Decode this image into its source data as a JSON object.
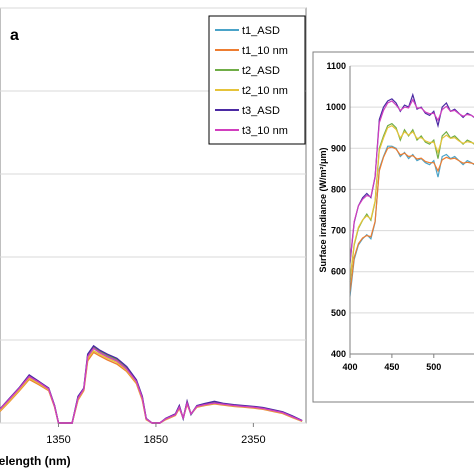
{
  "chart_data": [
    {
      "type": "line",
      "panel_label": "a",
      "xlabel": "velength (nm)",
      "ylabel": "",
      "xlim": [
        1050,
        2620
      ],
      "ylim": [
        0,
        1000
      ],
      "x_ticks": [
        1350,
        1850,
        2350
      ],
      "grid": "horizontal",
      "legend_position": "top-right",
      "series": [
        {
          "name": "t1_ASD",
          "color": "#4aa3c8",
          "x": [
            1050,
            1100,
            1150,
            1200,
            1250,
            1300,
            1330,
            1350,
            1380,
            1420,
            1450,
            1480,
            1500,
            1530,
            1560,
            1600,
            1650,
            1700,
            1750,
            1780,
            1800,
            1830,
            1870,
            1900,
            1950,
            1970,
            1990,
            2010,
            2030,
            2060,
            2100,
            2150,
            2200,
            2250,
            2300,
            2350,
            2400,
            2450,
            2500,
            2550,
            2600
          ],
          "y": [
            30,
            55,
            80,
            110,
            95,
            80,
            40,
            0,
            0,
            0,
            60,
            80,
            160,
            180,
            170,
            160,
            150,
            130,
            100,
            60,
            10,
            0,
            0,
            10,
            20,
            40,
            10,
            50,
            20,
            40,
            45,
            50,
            45,
            42,
            40,
            38,
            35,
            30,
            25,
            15,
            5
          ]
        },
        {
          "name": "t1_10 nm",
          "color": "#ed7d31",
          "x": [
            1050,
            1100,
            1150,
            1200,
            1250,
            1300,
            1330,
            1350,
            1380,
            1420,
            1450,
            1480,
            1500,
            1530,
            1560,
            1600,
            1650,
            1700,
            1750,
            1780,
            1800,
            1830,
            1870,
            1900,
            1950,
            1970,
            1990,
            2010,
            2030,
            2060,
            2100,
            2150,
            2200,
            2250,
            2300,
            2350,
            2400,
            2450,
            2500,
            2550,
            2600
          ],
          "y": [
            28,
            52,
            78,
            105,
            92,
            78,
            38,
            0,
            0,
            0,
            55,
            78,
            150,
            170,
            162,
            152,
            142,
            124,
            95,
            55,
            8,
            0,
            0,
            8,
            18,
            35,
            12,
            45,
            22,
            38,
            42,
            46,
            43,
            40,
            38,
            36,
            33,
            28,
            23,
            13,
            4
          ]
        },
        {
          "name": "t2_ASD",
          "color": "#70ad47",
          "x": [
            1050,
            1100,
            1150,
            1200,
            1250,
            1300,
            1330,
            1350,
            1380,
            1420,
            1450,
            1480,
            1500,
            1530,
            1560,
            1600,
            1650,
            1700,
            1750,
            1780,
            1800,
            1830,
            1870,
            1900,
            1950,
            1970,
            1990,
            2010,
            2030,
            2060,
            2100,
            2150,
            2200,
            2250,
            2300,
            2350,
            2400,
            2450,
            2500,
            2550,
            2600
          ],
          "y": [
            32,
            57,
            83,
            113,
            98,
            82,
            41,
            0,
            0,
            0,
            62,
            82,
            163,
            183,
            173,
            163,
            153,
            133,
            102,
            62,
            10,
            0,
            0,
            10,
            21,
            41,
            11,
            51,
            21,
            41,
            46,
            51,
            46,
            43,
            41,
            39,
            36,
            31,
            26,
            16,
            5
          ]
        },
        {
          "name": "t2_10 nm",
          "color": "#e5c33a",
          "x": [
            1050,
            1100,
            1150,
            1200,
            1250,
            1300,
            1330,
            1350,
            1380,
            1420,
            1450,
            1480,
            1500,
            1530,
            1560,
            1600,
            1650,
            1700,
            1750,
            1780,
            1800,
            1830,
            1870,
            1900,
            1950,
            1970,
            1990,
            2010,
            2030,
            2060,
            2100,
            2150,
            2200,
            2250,
            2300,
            2350,
            2400,
            2450,
            2500,
            2550,
            2600
          ],
          "y": [
            30,
            54,
            80,
            108,
            95,
            80,
            39,
            0,
            0,
            0,
            57,
            80,
            155,
            174,
            166,
            156,
            146,
            127,
            97,
            57,
            9,
            0,
            0,
            9,
            19,
            37,
            12,
            47,
            22,
            39,
            43,
            47,
            44,
            41,
            39,
            37,
            34,
            29,
            24,
            14,
            4
          ]
        },
        {
          "name": "t3_ASD",
          "color": "#4b2aa3",
          "x": [
            1050,
            1100,
            1150,
            1200,
            1250,
            1300,
            1330,
            1350,
            1380,
            1420,
            1450,
            1480,
            1500,
            1530,
            1560,
            1600,
            1650,
            1700,
            1750,
            1780,
            1800,
            1830,
            1870,
            1900,
            1950,
            1970,
            1990,
            2010,
            2030,
            2060,
            2100,
            2150,
            2200,
            2250,
            2300,
            2350,
            2400,
            2450,
            2500,
            2550,
            2600
          ],
          "y": [
            34,
            60,
            86,
            116,
            100,
            84,
            42,
            0,
            0,
            0,
            64,
            84,
            166,
            186,
            176,
            166,
            156,
            136,
            104,
            64,
            11,
            0,
            0,
            11,
            22,
            42,
            11,
            52,
            21,
            42,
            47,
            52,
            47,
            44,
            42,
            40,
            37,
            32,
            27,
            17,
            6
          ]
        },
        {
          "name": "t3_10 nm",
          "color": "#d13fbe",
          "x": [
            1050,
            1100,
            1150,
            1200,
            1250,
            1300,
            1330,
            1350,
            1380,
            1420,
            1450,
            1480,
            1500,
            1530,
            1560,
            1600,
            1650,
            1700,
            1750,
            1780,
            1800,
            1830,
            1870,
            1900,
            1950,
            1970,
            1990,
            2010,
            2030,
            2060,
            2100,
            2150,
            2200,
            2250,
            2300,
            2350,
            2400,
            2450,
            2500,
            2550,
            2600
          ],
          "y": [
            33,
            58,
            84,
            112,
            98,
            82,
            40,
            0,
            0,
            0,
            60,
            82,
            160,
            180,
            170,
            160,
            150,
            130,
            100,
            60,
            10,
            0,
            0,
            10,
            20,
            38,
            12,
            48,
            22,
            40,
            44,
            48,
            45,
            42,
            40,
            38,
            35,
            30,
            25,
            15,
            5
          ]
        }
      ]
    },
    {
      "type": "line",
      "xlabel": "",
      "ylabel": "Surface irradiance (W/m²/μm)",
      "xlim": [
        400,
        548
      ],
      "ylim": [
        400,
        1100
      ],
      "x_ticks": [
        400,
        450,
        500
      ],
      "y_ticks": [
        400,
        500,
        600,
        700,
        800,
        900,
        1000,
        1100
      ],
      "grid": "horizontal",
      "series": [
        {
          "name": "t1_ASD",
          "color": "#4aa3c8",
          "x": [
            400,
            405,
            410,
            415,
            420,
            425,
            430,
            435,
            440,
            445,
            450,
            455,
            460,
            465,
            470,
            475,
            480,
            485,
            490,
            495,
            500,
            505,
            510,
            515,
            520,
            525,
            530,
            535,
            540,
            545,
            548
          ],
          "y": [
            540,
            630,
            665,
            680,
            690,
            680,
            720,
            850,
            880,
            905,
            905,
            900,
            880,
            890,
            875,
            885,
            870,
            875,
            865,
            860,
            870,
            830,
            880,
            885,
            875,
            880,
            870,
            860,
            870,
            865,
            860
          ]
        },
        {
          "name": "t1_10 nm",
          "color": "#ed7d31",
          "x": [
            400,
            405,
            410,
            415,
            420,
            425,
            430,
            435,
            440,
            445,
            450,
            455,
            460,
            465,
            470,
            475,
            480,
            485,
            490,
            495,
            500,
            505,
            510,
            515,
            520,
            525,
            530,
            535,
            540,
            545,
            548
          ],
          "y": [
            550,
            635,
            668,
            682,
            688,
            685,
            722,
            845,
            878,
            900,
            903,
            898,
            884,
            888,
            880,
            882,
            874,
            876,
            868,
            865,
            865,
            845,
            872,
            878,
            874,
            876,
            870,
            864,
            866,
            864,
            862
          ]
        },
        {
          "name": "t2_ASD",
          "color": "#70ad47",
          "x": [
            400,
            405,
            410,
            415,
            420,
            425,
            430,
            435,
            440,
            445,
            450,
            455,
            460,
            465,
            470,
            475,
            480,
            485,
            490,
            495,
            500,
            505,
            510,
            515,
            520,
            525,
            530,
            535,
            540,
            545,
            548
          ],
          "y": [
            575,
            665,
            705,
            725,
            740,
            725,
            770,
            900,
            930,
            955,
            960,
            950,
            920,
            945,
            930,
            945,
            920,
            930,
            915,
            910,
            920,
            875,
            930,
            940,
            925,
            930,
            920,
            910,
            920,
            915,
            910
          ]
        },
        {
          "name": "t2_10 nm",
          "color": "#e5c33a",
          "x": [
            400,
            405,
            410,
            415,
            420,
            425,
            430,
            435,
            440,
            445,
            450,
            455,
            460,
            465,
            470,
            475,
            480,
            485,
            490,
            495,
            500,
            505,
            510,
            515,
            520,
            525,
            530,
            535,
            540,
            545,
            548
          ],
          "y": [
            580,
            668,
            708,
            726,
            736,
            728,
            772,
            895,
            925,
            950,
            955,
            946,
            925,
            940,
            932,
            940,
            924,
            926,
            918,
            914,
            915,
            890,
            924,
            932,
            924,
            926,
            918,
            912,
            916,
            914,
            912
          ]
        },
        {
          "name": "t3_ASD",
          "color": "#4b2aa3",
          "x": [
            400,
            405,
            410,
            415,
            420,
            425,
            430,
            435,
            440,
            445,
            450,
            455,
            460,
            465,
            470,
            475,
            480,
            485,
            490,
            495,
            500,
            505,
            510,
            515,
            520,
            525,
            530,
            535,
            540,
            545,
            548
          ],
          "y": [
            620,
            720,
            760,
            780,
            790,
            780,
            830,
            970,
            1000,
            1015,
            1020,
            1010,
            990,
            1005,
            1000,
            1030,
            995,
            1000,
            985,
            980,
            990,
            955,
            1000,
            1010,
            990,
            995,
            985,
            975,
            985,
            980,
            975
          ]
        },
        {
          "name": "t3_10 nm",
          "color": "#d13fbe",
          "x": [
            400,
            405,
            410,
            415,
            420,
            425,
            430,
            435,
            440,
            445,
            450,
            455,
            460,
            465,
            470,
            475,
            480,
            485,
            490,
            495,
            500,
            505,
            510,
            515,
            520,
            525,
            530,
            535,
            540,
            545,
            548
          ],
          "y": [
            625,
            722,
            760,
            776,
            785,
            782,
            832,
            962,
            992,
            1010,
            1015,
            1005,
            992,
            1000,
            998,
            1018,
            998,
            998,
            988,
            984,
            985,
            968,
            994,
            1002,
            990,
            992,
            984,
            978,
            982,
            980,
            976
          ]
        }
      ]
    }
  ]
}
